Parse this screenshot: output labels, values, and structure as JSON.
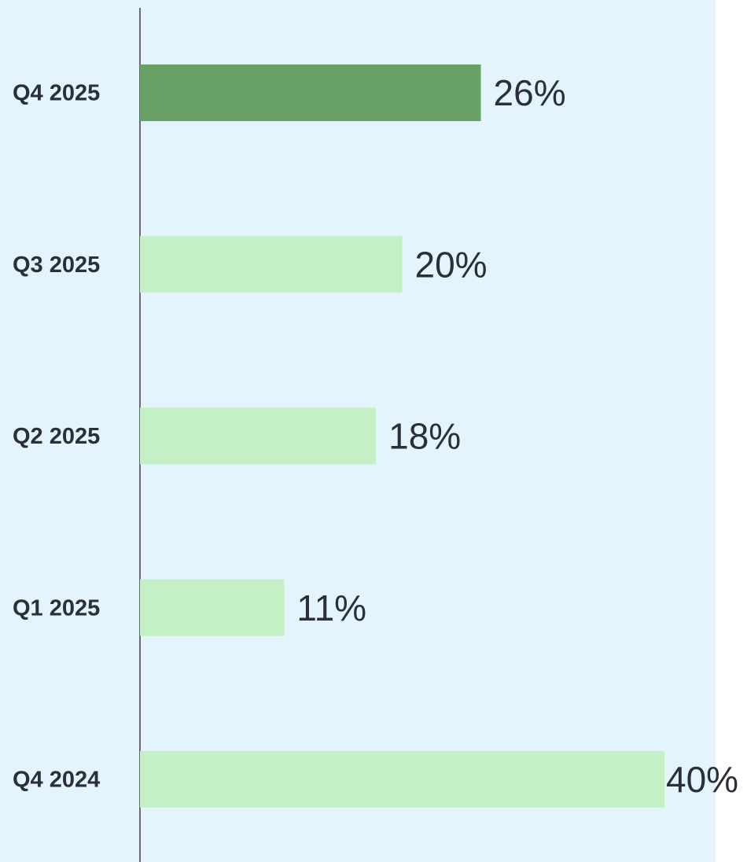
{
  "chart_data": {
    "type": "barh",
    "categories": [
      "Q4 2025",
      "Q3 2025",
      "Q2 2025",
      "Q1 2025",
      "Q4 2024"
    ],
    "values": [
      26,
      20,
      18,
      11,
      40
    ],
    "value_labels": [
      "26%",
      "20%",
      "18%",
      "11%",
      "40%"
    ],
    "colors": [
      "#68a065",
      "#c5f0c5",
      "#c5f0c5",
      "#c5f0c5",
      "#c5f0c5"
    ],
    "xlim": [
      0,
      40
    ]
  }
}
